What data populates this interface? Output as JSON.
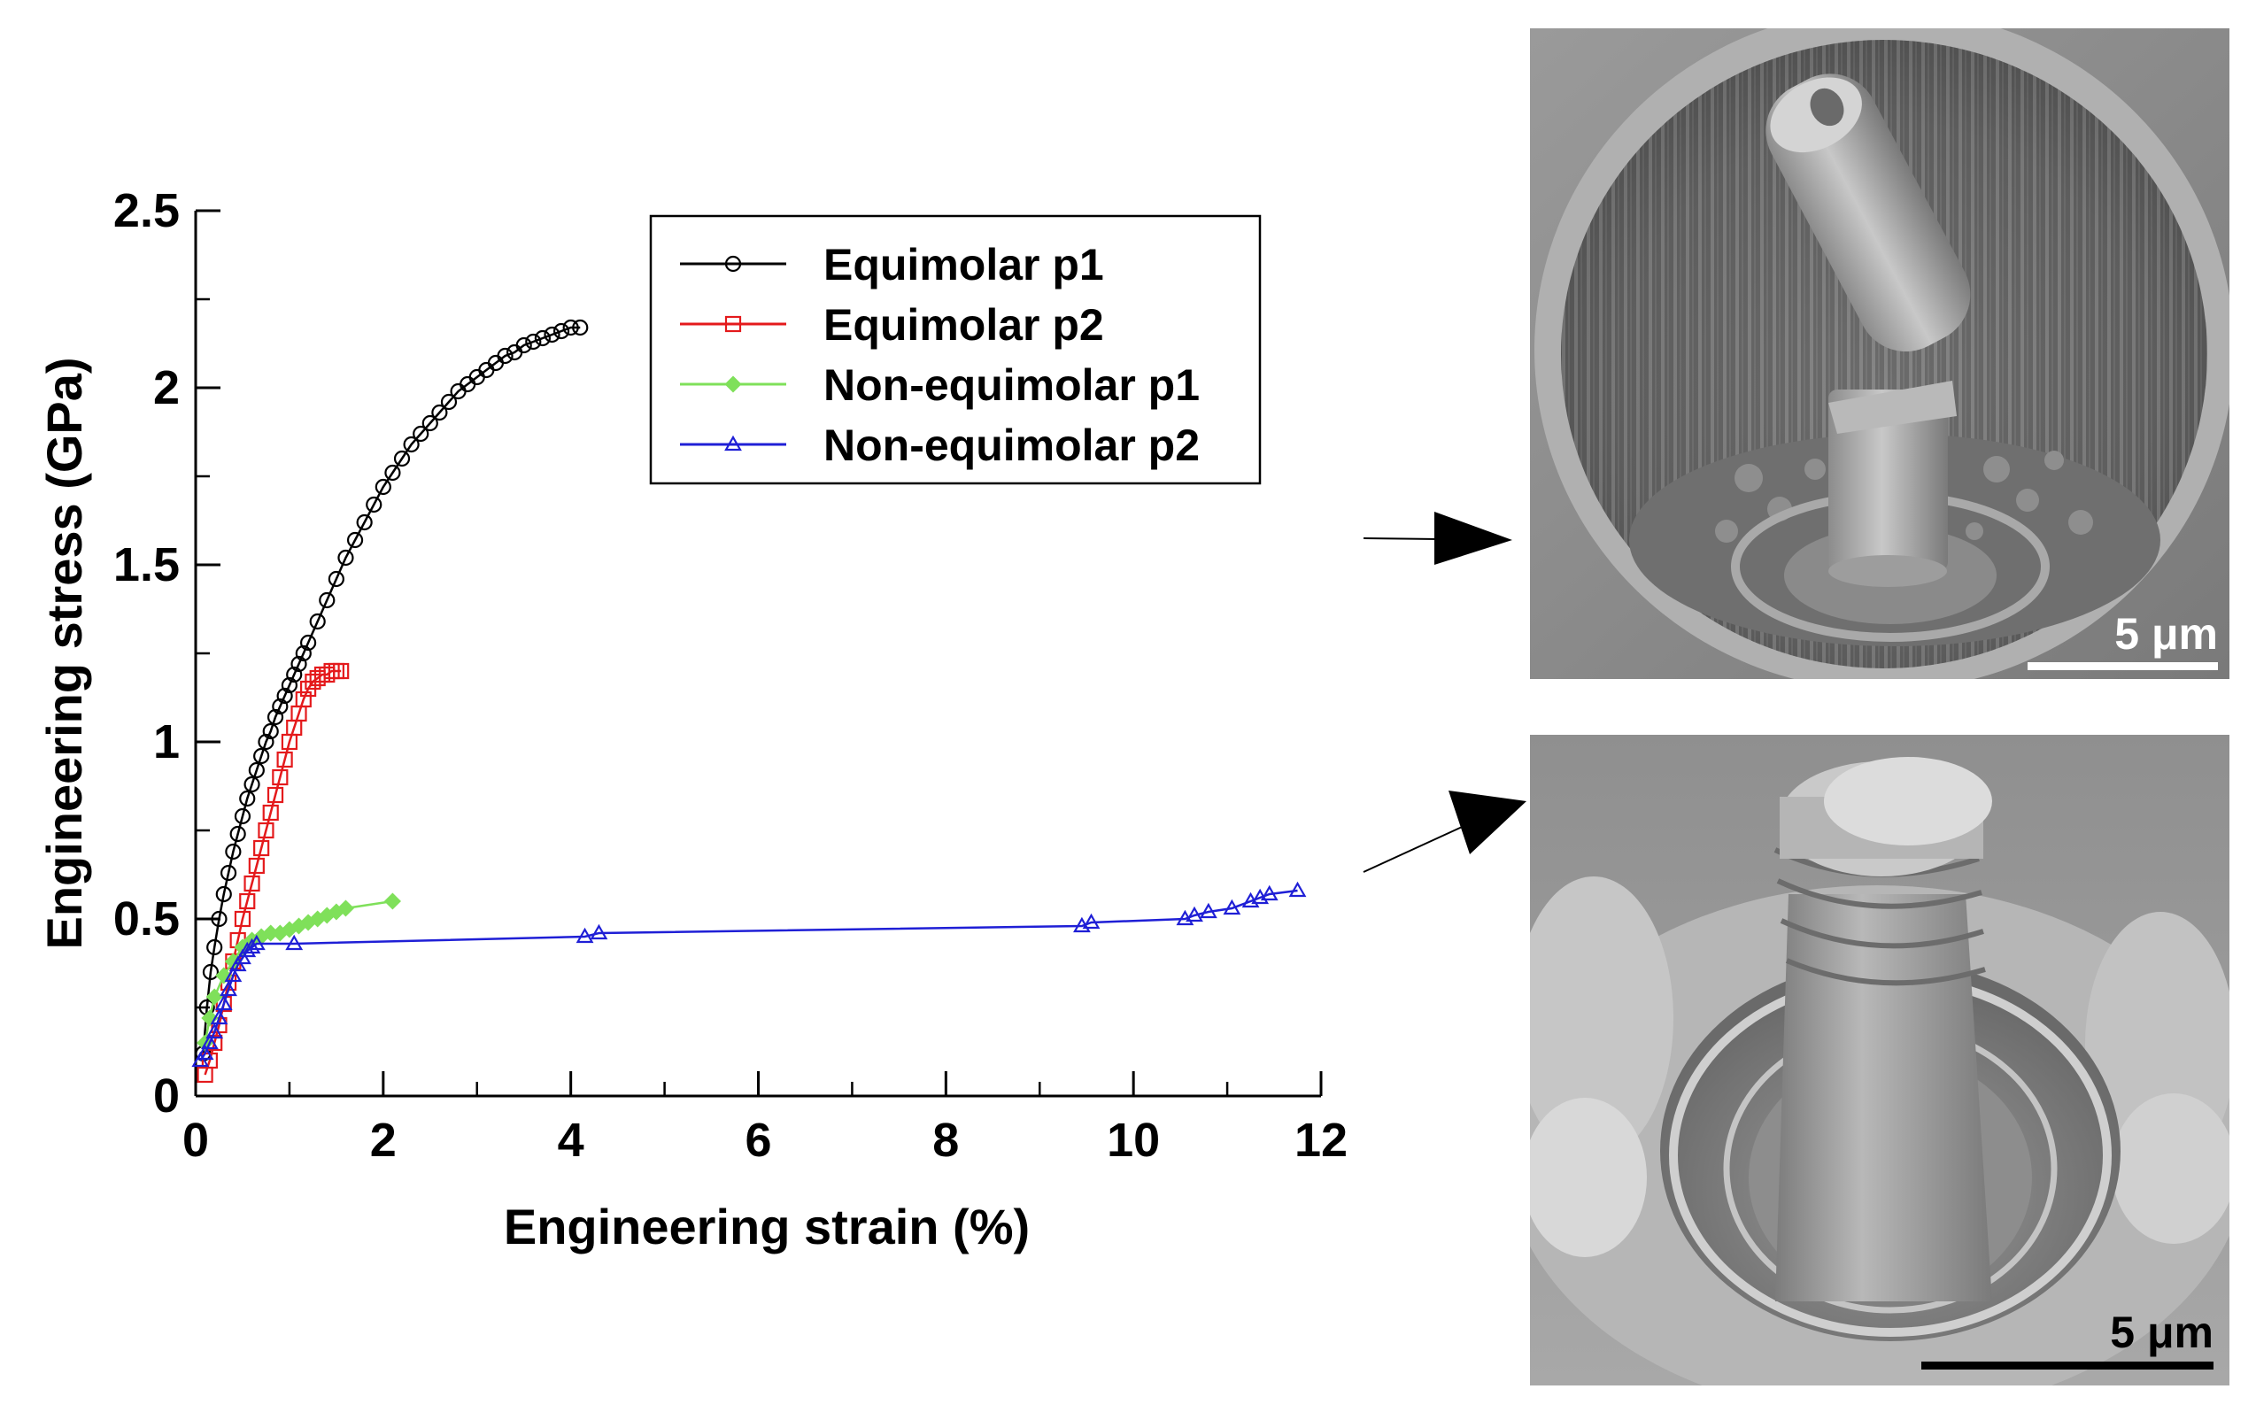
{
  "chart_data": {
    "type": "scatter",
    "xlabel": "Engineering strain (%)",
    "ylabel": "Engineering stress (GPa)",
    "xlim": [
      0,
      12
    ],
    "ylim": [
      0,
      2.5
    ],
    "xticks": [
      0,
      2,
      4,
      6,
      8,
      10,
      12
    ],
    "xtick_labels": [
      "0",
      "2",
      "4",
      "6",
      "8",
      "10",
      "12"
    ],
    "yticks": [
      0,
      0.5,
      1,
      1.5,
      2,
      2.5
    ],
    "ytick_labels": [
      "0",
      "0.5",
      "1",
      "1.5",
      "2",
      "2.5"
    ],
    "grid": false,
    "legend_position": "top-right",
    "series": [
      {
        "name": "Equimolar p1",
        "color": "#000000",
        "marker": "circle",
        "x": [
          0.08,
          0.12,
          0.16,
          0.2,
          0.25,
          0.3,
          0.35,
          0.4,
          0.45,
          0.5,
          0.55,
          0.6,
          0.65,
          0.7,
          0.75,
          0.8,
          0.85,
          0.9,
          0.95,
          1.0,
          1.05,
          1.1,
          1.15,
          1.2,
          1.3,
          1.4,
          1.5,
          1.6,
          1.7,
          1.8,
          1.9,
          2.0,
          2.1,
          2.2,
          2.3,
          2.4,
          2.5,
          2.6,
          2.7,
          2.8,
          2.9,
          3.0,
          3.1,
          3.2,
          3.3,
          3.4,
          3.5,
          3.6,
          3.7,
          3.8,
          3.9,
          4.0,
          4.1
        ],
        "y": [
          0.12,
          0.25,
          0.35,
          0.42,
          0.5,
          0.57,
          0.63,
          0.69,
          0.74,
          0.79,
          0.84,
          0.88,
          0.92,
          0.96,
          1.0,
          1.03,
          1.07,
          1.1,
          1.13,
          1.16,
          1.19,
          1.22,
          1.25,
          1.28,
          1.34,
          1.4,
          1.46,
          1.52,
          1.57,
          1.62,
          1.67,
          1.72,
          1.76,
          1.8,
          1.84,
          1.87,
          1.9,
          1.93,
          1.96,
          1.99,
          2.01,
          2.03,
          2.05,
          2.07,
          2.09,
          2.1,
          2.12,
          2.13,
          2.14,
          2.15,
          2.16,
          2.17,
          2.17
        ]
      },
      {
        "name": "Equimolar p2",
        "color": "#e41a1c",
        "marker": "square",
        "x": [
          0.1,
          0.15,
          0.2,
          0.25,
          0.3,
          0.35,
          0.4,
          0.45,
          0.5,
          0.55,
          0.6,
          0.65,
          0.7,
          0.75,
          0.8,
          0.85,
          0.9,
          0.95,
          1.0,
          1.05,
          1.1,
          1.15,
          1.2,
          1.25,
          1.3,
          1.35,
          1.4,
          1.45,
          1.5,
          1.55
        ],
        "y": [
          0.06,
          0.1,
          0.15,
          0.2,
          0.26,
          0.32,
          0.38,
          0.44,
          0.5,
          0.55,
          0.6,
          0.65,
          0.7,
          0.75,
          0.8,
          0.85,
          0.9,
          0.95,
          1.0,
          1.04,
          1.08,
          1.12,
          1.15,
          1.17,
          1.18,
          1.19,
          1.19,
          1.2,
          1.2,
          1.2
        ]
      },
      {
        "name": "Non-equimolar p1",
        "color": "#7fe05a",
        "marker": "diamond",
        "x": [
          0.1,
          0.15,
          0.2,
          0.3,
          0.4,
          0.5,
          0.6,
          0.7,
          0.8,
          0.9,
          1.0,
          1.1,
          1.2,
          1.3,
          1.4,
          1.5,
          1.6,
          2.1
        ],
        "y": [
          0.15,
          0.22,
          0.28,
          0.34,
          0.38,
          0.42,
          0.44,
          0.45,
          0.46,
          0.46,
          0.47,
          0.48,
          0.49,
          0.5,
          0.51,
          0.52,
          0.53,
          0.55
        ]
      },
      {
        "name": "Non-equimolar p2",
        "color": "#1f1fd6",
        "marker": "triangle",
        "x": [
          0.05,
          0.1,
          0.15,
          0.2,
          0.25,
          0.3,
          0.35,
          0.4,
          0.45,
          0.5,
          0.55,
          0.6,
          0.65,
          1.05,
          4.15,
          4.3,
          9.45,
          9.55,
          10.55,
          10.65,
          10.8,
          11.05,
          11.25,
          11.35,
          11.45,
          11.75
        ],
        "y": [
          0.1,
          0.12,
          0.15,
          0.18,
          0.22,
          0.26,
          0.3,
          0.34,
          0.37,
          0.39,
          0.41,
          0.42,
          0.43,
          0.43,
          0.45,
          0.46,
          0.48,
          0.49,
          0.5,
          0.51,
          0.52,
          0.53,
          0.55,
          0.56,
          0.57,
          0.58
        ]
      }
    ]
  },
  "micrographs": [
    {
      "scale_bar_label": "5 μm",
      "points_to_series": "Equimolar p1"
    },
    {
      "scale_bar_label": "5 μm",
      "points_to_series": "Non-equimolar p2"
    }
  ]
}
